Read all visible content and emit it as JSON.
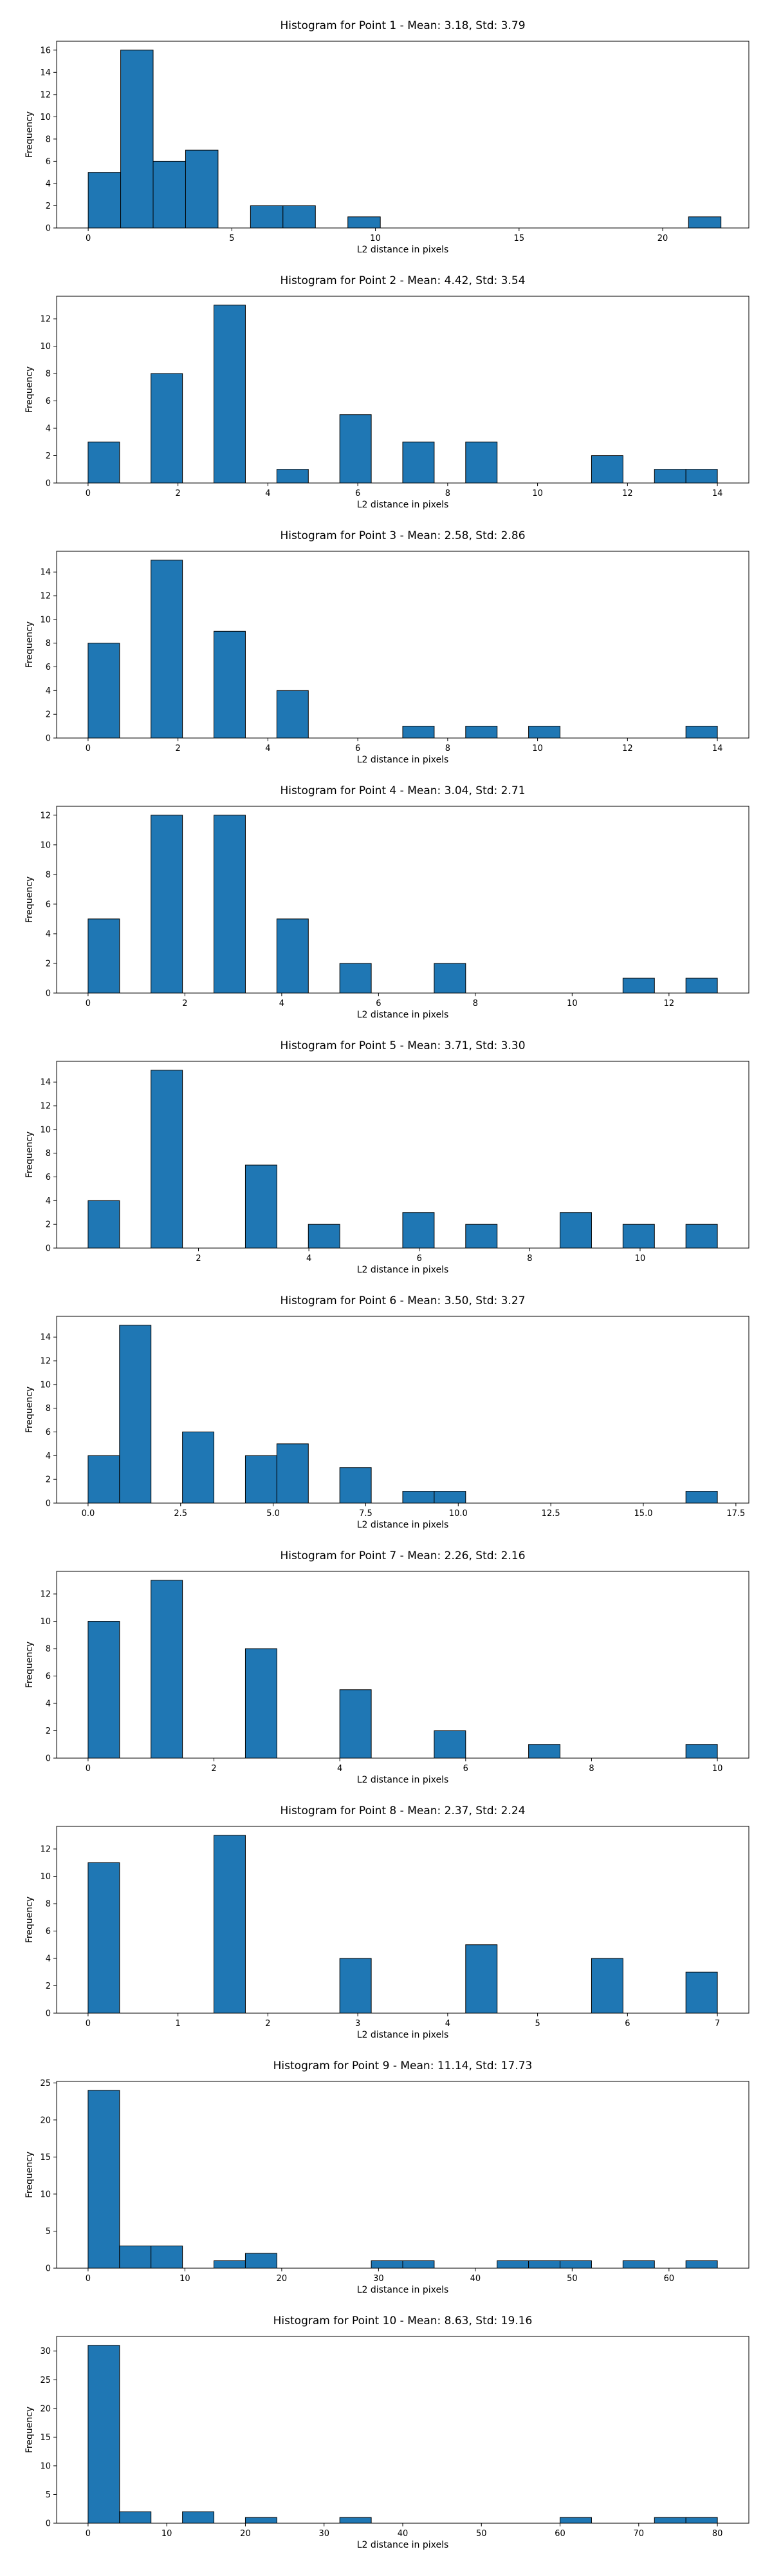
{
  "chart_data": [
    {
      "type": "bar",
      "title": "Histogram for Point 1 - Mean: 3.18, Std: 3.79",
      "xlabel": "L2 distance in pixels",
      "ylabel": "Frequency",
      "xlim": [
        -1.1,
        23.0
      ],
      "ylim": [
        0,
        16.8
      ],
      "xticks": [
        0,
        5,
        10,
        15,
        20
      ],
      "xtick_labels": [
        "0",
        "5",
        "10",
        "15",
        "20"
      ],
      "yticks": [
        0,
        2,
        4,
        6,
        8,
        10,
        12,
        14,
        16
      ],
      "ytick_labels": [
        "0",
        "2",
        "4",
        "6",
        "8",
        "10",
        "12",
        "14",
        "16"
      ],
      "bins": [
        [
          0,
          1.13,
          5
        ],
        [
          1.13,
          2.26,
          16
        ],
        [
          2.26,
          3.39,
          6
        ],
        [
          3.39,
          4.52,
          7
        ],
        [
          5.65,
          6.78,
          2
        ],
        [
          6.78,
          7.91,
          2
        ],
        [
          9.04,
          10.17,
          1
        ],
        [
          20.9,
          22.03,
          1
        ]
      ]
    },
    {
      "type": "bar",
      "title": "Histogram for Point 2 - Mean: 4.42, Std: 3.54",
      "xlabel": "L2 distance in pixels",
      "ylabel": "Frequency",
      "xlim": [
        -0.7,
        14.7
      ],
      "ylim": [
        0,
        13.65
      ],
      "xticks": [
        0,
        2,
        4,
        6,
        8,
        10,
        12,
        14
      ],
      "xtick_labels": [
        "0",
        "2",
        "4",
        "6",
        "8",
        "10",
        "12",
        "14"
      ],
      "yticks": [
        0,
        2,
        4,
        6,
        8,
        10,
        12
      ],
      "ytick_labels": [
        "0",
        "2",
        "4",
        "6",
        "8",
        "10",
        "12"
      ],
      "bins": [
        [
          0,
          0.7,
          3
        ],
        [
          1.4,
          2.1,
          8
        ],
        [
          2.8,
          3.5,
          13
        ],
        [
          4.2,
          4.9,
          1
        ],
        [
          5.6,
          6.3,
          5
        ],
        [
          7.0,
          7.7,
          3
        ],
        [
          8.4,
          9.1,
          3
        ],
        [
          11.2,
          11.9,
          2
        ],
        [
          12.6,
          13.3,
          1
        ],
        [
          13.3,
          14.0,
          1
        ]
      ]
    },
    {
      "type": "bar",
      "title": "Histogram for Point 3 - Mean: 2.58, Std: 2.86",
      "xlabel": "L2 distance in pixels",
      "ylabel": "Frequency",
      "xlim": [
        -0.7,
        14.7
      ],
      "ylim": [
        0,
        15.75
      ],
      "xticks": [
        0,
        2,
        4,
        6,
        8,
        10,
        12,
        14
      ],
      "xtick_labels": [
        "0",
        "2",
        "4",
        "6",
        "8",
        "10",
        "12",
        "14"
      ],
      "yticks": [
        0,
        2,
        4,
        6,
        8,
        10,
        12,
        14
      ],
      "ytick_labels": [
        "0",
        "2",
        "4",
        "6",
        "8",
        "10",
        "12",
        "14"
      ],
      "bins": [
        [
          0,
          0.7,
          8
        ],
        [
          1.4,
          2.1,
          15
        ],
        [
          2.8,
          3.5,
          9
        ],
        [
          4.2,
          4.9,
          4
        ],
        [
          7.0,
          7.7,
          1
        ],
        [
          8.4,
          9.1,
          1
        ],
        [
          9.8,
          10.5,
          1
        ],
        [
          13.3,
          14.0,
          1
        ]
      ]
    },
    {
      "type": "bar",
      "title": "Histogram for Point 4 - Mean: 3.04, Std: 2.71",
      "xlabel": "L2 distance in pixels",
      "ylabel": "Frequency",
      "xlim": [
        -0.65,
        13.65
      ],
      "ylim": [
        0,
        12.6
      ],
      "xticks": [
        0,
        2,
        4,
        6,
        8,
        10,
        12
      ],
      "xtick_labels": [
        "0",
        "2",
        "4",
        "6",
        "8",
        "10",
        "12"
      ],
      "yticks": [
        0,
        2,
        4,
        6,
        8,
        10,
        12
      ],
      "ytick_labels": [
        "0",
        "2",
        "4",
        "6",
        "8",
        "10",
        "12"
      ],
      "bins": [
        [
          0,
          0.65,
          5
        ],
        [
          1.3,
          1.95,
          12
        ],
        [
          2.6,
          3.25,
          12
        ],
        [
          3.9,
          4.55,
          5
        ],
        [
          5.2,
          5.85,
          2
        ],
        [
          7.15,
          7.8,
          2
        ],
        [
          11.05,
          11.7,
          1
        ],
        [
          12.35,
          13.0,
          1
        ]
      ]
    },
    {
      "type": "bar",
      "title": "Histogram for Point 5 - Mean: 3.71, Std: 3.30",
      "xlabel": "L2 distance in pixels",
      "ylabel": "Frequency",
      "xlim": [
        -0.57,
        11.97
      ],
      "ylim": [
        0,
        15.75
      ],
      "xticks": [
        2,
        4,
        6,
        8,
        10
      ],
      "xtick_labels": [
        "2",
        "4",
        "6",
        "8",
        "10"
      ],
      "yticks": [
        0,
        2,
        4,
        6,
        8,
        10,
        12,
        14
      ],
      "ytick_labels": [
        "0",
        "2",
        "4",
        "6",
        "8",
        "10",
        "12",
        "14"
      ],
      "bins": [
        [
          0,
          0.57,
          4
        ],
        [
          1.14,
          1.71,
          15
        ],
        [
          2.85,
          3.42,
          7
        ],
        [
          3.99,
          4.56,
          2
        ],
        [
          5.7,
          6.27,
          3
        ],
        [
          6.84,
          7.41,
          2
        ],
        [
          8.55,
          9.12,
          3
        ],
        [
          9.69,
          10.26,
          2
        ],
        [
          10.83,
          11.4,
          2
        ]
      ]
    },
    {
      "type": "bar",
      "title": "Histogram for Point 6 - Mean: 3.50, Std: 3.27",
      "xlabel": "L2 distance in pixels",
      "ylabel": "Frequency",
      "xlim": [
        -0.85,
        17.85
      ],
      "ylim": [
        0,
        15.75
      ],
      "xticks": [
        0.0,
        2.5,
        5.0,
        7.5,
        10.0,
        12.5,
        15.0,
        17.5
      ],
      "xtick_labels": [
        "0.0",
        "2.5",
        "5.0",
        "7.5",
        "10.0",
        "12.5",
        "15.0",
        "17.5"
      ],
      "yticks": [
        0,
        2,
        4,
        6,
        8,
        10,
        12,
        14
      ],
      "ytick_labels": [
        "0",
        "2",
        "4",
        "6",
        "8",
        "10",
        "12",
        "14"
      ],
      "bins": [
        [
          0,
          0.85,
          4
        ],
        [
          0.85,
          1.7,
          15
        ],
        [
          2.55,
          3.4,
          6
        ],
        [
          4.25,
          5.1,
          4
        ],
        [
          5.1,
          5.95,
          5
        ],
        [
          6.8,
          7.65,
          3
        ],
        [
          8.5,
          9.35,
          1
        ],
        [
          9.35,
          10.2,
          1
        ],
        [
          16.15,
          17.0,
          1
        ]
      ]
    },
    {
      "type": "bar",
      "title": "Histogram for Point 7 - Mean: 2.26, Std: 2.16",
      "xlabel": "L2 distance in pixels",
      "ylabel": "Frequency",
      "xlim": [
        -0.5,
        10.5
      ],
      "ylim": [
        0,
        13.65
      ],
      "xticks": [
        0,
        2,
        4,
        6,
        8,
        10
      ],
      "xtick_labels": [
        "0",
        "2",
        "4",
        "6",
        "8",
        "10"
      ],
      "yticks": [
        0,
        2,
        4,
        6,
        8,
        10,
        12
      ],
      "ytick_labels": [
        "0",
        "2",
        "4",
        "6",
        "8",
        "10",
        "12"
      ],
      "bins": [
        [
          0,
          0.5,
          10
        ],
        [
          1.0,
          1.5,
          13
        ],
        [
          2.5,
          3.0,
          8
        ],
        [
          4.0,
          4.5,
          5
        ],
        [
          5.5,
          6.0,
          2
        ],
        [
          7.0,
          7.5,
          1
        ],
        [
          9.5,
          10.0,
          1
        ]
      ]
    },
    {
      "type": "bar",
      "title": "Histogram for Point 8 - Mean: 2.37, Std: 2.24",
      "xlabel": "L2 distance in pixels",
      "ylabel": "Frequency",
      "xlim": [
        -0.35,
        7.35
      ],
      "ylim": [
        0,
        13.65
      ],
      "xticks": [
        0,
        1,
        2,
        3,
        4,
        5,
        6,
        7
      ],
      "xtick_labels": [
        "0",
        "1",
        "2",
        "3",
        "4",
        "5",
        "6",
        "7"
      ],
      "yticks": [
        0,
        2,
        4,
        6,
        8,
        10,
        12
      ],
      "ytick_labels": [
        "0",
        "2",
        "4",
        "6",
        "8",
        "10",
        "12"
      ],
      "bins": [
        [
          0,
          0.35,
          11
        ],
        [
          1.4,
          1.75,
          13
        ],
        [
          2.8,
          3.15,
          4
        ],
        [
          4.2,
          4.55,
          5
        ],
        [
          5.6,
          5.95,
          4
        ],
        [
          6.65,
          7.0,
          3
        ]
      ]
    },
    {
      "type": "bar",
      "title": "Histogram for Point 9 - Mean: 11.14, Std: 17.73",
      "xlabel": "L2 distance in pixels",
      "ylabel": "Frequency",
      "xlim": [
        -3.25,
        68.25
      ],
      "ylim": [
        0,
        25.2
      ],
      "xticks": [
        0,
        10,
        20,
        30,
        40,
        50,
        60
      ],
      "xtick_labels": [
        "0",
        "10",
        "20",
        "30",
        "40",
        "50",
        "60"
      ],
      "yticks": [
        0,
        5,
        10,
        15,
        20,
        25
      ],
      "ytick_labels": [
        "0",
        "5",
        "10",
        "15",
        "20",
        "25"
      ],
      "bins": [
        [
          0,
          3.25,
          24
        ],
        [
          3.25,
          6.5,
          3
        ],
        [
          6.5,
          9.75,
          3
        ],
        [
          13.0,
          16.25,
          1
        ],
        [
          16.25,
          19.5,
          2
        ],
        [
          29.25,
          32.5,
          1
        ],
        [
          32.5,
          35.75,
          1
        ],
        [
          42.25,
          45.5,
          1
        ],
        [
          45.5,
          48.75,
          1
        ],
        [
          48.75,
          52.0,
          1
        ],
        [
          55.25,
          58.5,
          1
        ],
        [
          61.75,
          65.0,
          1
        ]
      ]
    },
    {
      "type": "bar",
      "title": "Histogram for Point 10 - Mean: 8.63, Std: 19.16",
      "xlabel": "L2 distance in pixels",
      "ylabel": "Frequency",
      "xlim": [
        -4.0,
        84.0
      ],
      "ylim": [
        0,
        32.55
      ],
      "xticks": [
        0,
        10,
        20,
        30,
        40,
        50,
        60,
        70,
        80
      ],
      "xtick_labels": [
        "0",
        "10",
        "20",
        "30",
        "40",
        "50",
        "60",
        "70",
        "80"
      ],
      "yticks": [
        0,
        5,
        10,
        15,
        20,
        25,
        30
      ],
      "ytick_labels": [
        "0",
        "5",
        "10",
        "15",
        "20",
        "25",
        "30"
      ],
      "bins": [
        [
          0,
          4,
          31
        ],
        [
          4,
          8,
          2
        ],
        [
          12,
          16,
          2
        ],
        [
          20,
          24,
          1
        ],
        [
          32,
          36,
          1
        ],
        [
          60,
          64,
          1
        ],
        [
          72,
          76,
          1
        ],
        [
          76,
          80,
          1
        ]
      ]
    }
  ]
}
